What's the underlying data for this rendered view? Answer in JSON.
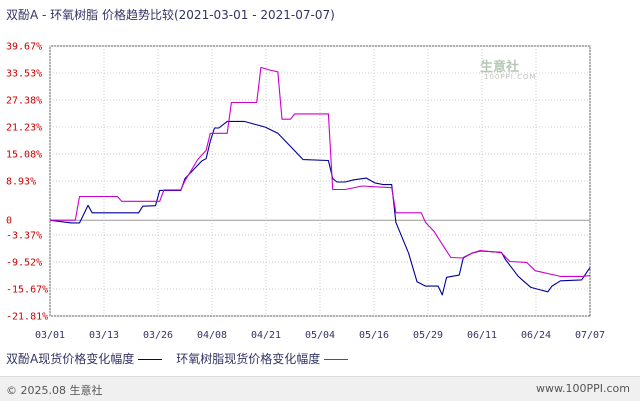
{
  "title": "双酚A - 环氧树脂 价格趋势比较(2021-03-01 - 2021-07-07)",
  "watermark": {
    "name": "生意社",
    "url": "100PPI.COM"
  },
  "footer": {
    "copyright": "© 2025.08 生意社",
    "site": "www.100PPI.com"
  },
  "colors": {
    "series_bisphenol": "#000099",
    "series_epoxy": "#cc00cc",
    "axis_tick": "#cc0000",
    "grid": "#cccccc",
    "zero_line": "#999999"
  },
  "chart_data": {
    "type": "line",
    "title": "双酚A - 环氧树脂 价格趋势比较(2021-03-01 - 2021-07-07)",
    "xlabel": "",
    "ylabel": "",
    "x_ticks": [
      "03/01",
      "03/13",
      "03/26",
      "04/08",
      "04/21",
      "05/04",
      "05/16",
      "05/29",
      "06/11",
      "06/24",
      "07/07"
    ],
    "y_ticks": [
      "39.67%",
      "33.53%",
      "27.38%",
      "21.23%",
      "15.08%",
      "8.93%",
      "0",
      "-3.37%",
      "-9.52%",
      "-15.67%",
      "-21.81%"
    ],
    "y_tick_values": [
      39.67,
      33.53,
      27.38,
      21.23,
      15.08,
      8.93,
      0,
      -3.37,
      -9.52,
      -15.67,
      -21.81
    ],
    "ylim": [
      -21.81,
      39.67
    ],
    "x_range": [
      "2021-03-01",
      "2021-07-07"
    ],
    "grid": true,
    "legend_position": "bottom",
    "series": [
      {
        "name": "双酚A现货价格变化幅度",
        "points": [
          [
            "2021-03-01",
            0
          ],
          [
            "2021-03-06",
            -0.6
          ],
          [
            "2021-03-08",
            -0.6
          ],
          [
            "2021-03-09",
            1.4
          ],
          [
            "2021-03-10",
            3.4
          ],
          [
            "2021-03-11",
            1.7
          ],
          [
            "2021-03-22",
            1.7
          ],
          [
            "2021-03-23",
            3.2
          ],
          [
            "2021-03-26",
            3.3
          ],
          [
            "2021-03-27",
            6.8
          ],
          [
            "2021-04-01",
            6.8
          ],
          [
            "2021-04-02",
            9.5
          ],
          [
            "2021-04-05",
            12.5
          ],
          [
            "2021-04-06",
            13.5
          ],
          [
            "2021-04-07",
            14.0
          ],
          [
            "2021-04-08",
            18.0
          ],
          [
            "2021-04-09",
            21.0
          ],
          [
            "2021-04-10",
            21.0
          ],
          [
            "2021-04-12",
            22.5
          ],
          [
            "2021-04-16",
            22.5
          ],
          [
            "2021-04-21",
            21.2
          ],
          [
            "2021-04-24",
            19.8
          ],
          [
            "2021-04-27",
            16.8
          ],
          [
            "2021-04-30",
            13.8
          ],
          [
            "2021-05-06",
            13.6
          ],
          [
            "2021-05-07",
            9.5
          ],
          [
            "2021-05-08",
            8.7
          ],
          [
            "2021-05-10",
            8.7
          ],
          [
            "2021-05-12",
            9.2
          ],
          [
            "2021-05-15",
            9.6
          ],
          [
            "2021-05-17",
            8.5
          ],
          [
            "2021-05-19",
            8.1
          ],
          [
            "2021-05-21",
            8.1
          ],
          [
            "2021-05-22",
            -0.5
          ],
          [
            "2021-05-25",
            -7.5
          ],
          [
            "2021-05-27",
            -14.0
          ],
          [
            "2021-05-29",
            -15.0
          ],
          [
            "2021-06-01",
            -15.0
          ],
          [
            "2021-06-02",
            -17.0
          ],
          [
            "2021-06-03",
            -13.0
          ],
          [
            "2021-06-06",
            -12.5
          ],
          [
            "2021-06-07",
            -8.5
          ],
          [
            "2021-06-09",
            -7.5
          ],
          [
            "2021-06-11",
            -7.0
          ],
          [
            "2021-06-16",
            -7.3
          ],
          [
            "2021-06-17",
            -9.0
          ],
          [
            "2021-06-20",
            -12.8
          ],
          [
            "2021-06-23",
            -15.3
          ],
          [
            "2021-06-25",
            -15.8
          ],
          [
            "2021-06-27",
            -16.3
          ],
          [
            "2021-06-28",
            -15.0
          ],
          [
            "2021-06-30",
            -13.8
          ],
          [
            "2021-07-05",
            -13.6
          ],
          [
            "2021-07-07",
            -10.8
          ]
        ]
      },
      {
        "name": "环氧树脂现货价格变化幅度",
        "points": [
          [
            "2021-03-01",
            0
          ],
          [
            "2021-03-07",
            0
          ],
          [
            "2021-03-08",
            5.4
          ],
          [
            "2021-03-17",
            5.4
          ],
          [
            "2021-03-18",
            4.3
          ],
          [
            "2021-03-27",
            4.3
          ],
          [
            "2021-03-28",
            6.9
          ],
          [
            "2021-04-01",
            6.9
          ],
          [
            "2021-04-02",
            9.0
          ],
          [
            "2021-04-05",
            13.8
          ],
          [
            "2021-04-07",
            15.9
          ],
          [
            "2021-04-08",
            19.8
          ],
          [
            "2021-04-12",
            19.8
          ],
          [
            "2021-04-13",
            26.8
          ],
          [
            "2021-04-19",
            26.8
          ],
          [
            "2021-04-20",
            34.8
          ],
          [
            "2021-04-22",
            34.2
          ],
          [
            "2021-04-24",
            33.8
          ],
          [
            "2021-04-25",
            23.0
          ],
          [
            "2021-04-27",
            23.0
          ],
          [
            "2021-04-28",
            24.2
          ],
          [
            "2021-05-06",
            24.2
          ],
          [
            "2021-05-07",
            7.0
          ],
          [
            "2021-05-10",
            7.0
          ],
          [
            "2021-05-14",
            7.8
          ],
          [
            "2021-05-21",
            7.4
          ],
          [
            "2021-05-22",
            1.7
          ],
          [
            "2021-05-28",
            1.7
          ],
          [
            "2021-05-29",
            -0.5
          ],
          [
            "2021-05-31",
            -2.5
          ],
          [
            "2021-06-02",
            -5.5
          ],
          [
            "2021-06-04",
            -8.5
          ],
          [
            "2021-06-07",
            -8.6
          ],
          [
            "2021-06-09",
            -7.5
          ],
          [
            "2021-06-11",
            -6.9
          ],
          [
            "2021-06-16",
            -7.4
          ],
          [
            "2021-06-18",
            -9.4
          ],
          [
            "2021-06-22",
            -9.6
          ],
          [
            "2021-06-24",
            -11.5
          ],
          [
            "2021-06-30",
            -12.8
          ],
          [
            "2021-07-05",
            -12.8
          ],
          [
            "2021-07-07",
            -12.6
          ]
        ]
      }
    ]
  }
}
